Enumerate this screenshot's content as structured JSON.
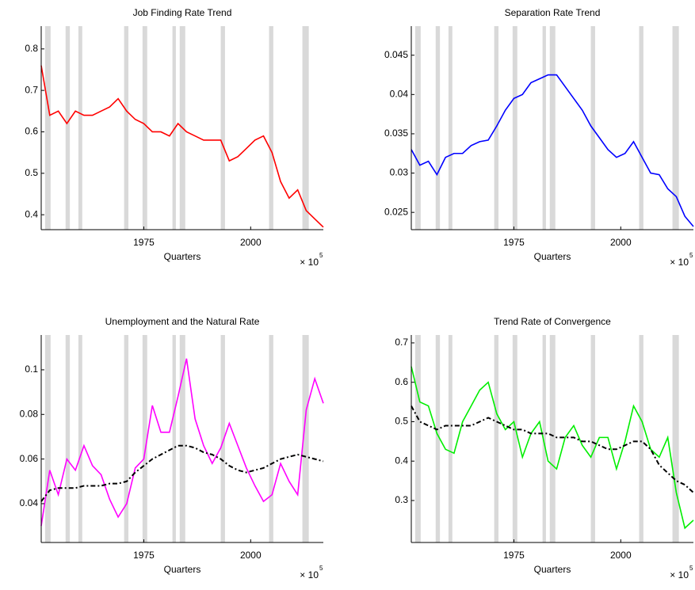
{
  "chart_data": [
    {
      "type": "line",
      "title": "Job Finding Rate Trend",
      "xlabel": "Quarters",
      "x_exponent": {
        "base": "× 10",
        "exponent": "5"
      },
      "x": [
        1951,
        1953,
        1955,
        1957,
        1959,
        1961,
        1963,
        1965,
        1967,
        1969,
        1971,
        1973,
        1975,
        1977,
        1979,
        1981,
        1983,
        1985,
        1987,
        1989,
        1991,
        1993,
        1995,
        1997,
        1999,
        2001,
        2003,
        2005,
        2007,
        2009,
        2011,
        2013,
        2015,
        2017
      ],
      "series": [
        {
          "color": "#ff0000",
          "dash": "solid",
          "values": [
            0.76,
            0.64,
            0.65,
            0.62,
            0.65,
            0.64,
            0.64,
            0.65,
            0.66,
            0.68,
            0.65,
            0.63,
            0.62,
            0.6,
            0.6,
            0.59,
            0.62,
            0.6,
            0.59,
            0.58,
            0.58,
            0.58,
            0.53,
            0.54,
            0.56,
            0.58,
            0.59,
            0.55,
            0.48,
            0.44,
            0.46,
            0.41,
            0.39,
            0.37
          ]
        }
      ],
      "xlim": [
        1951,
        2017
      ],
      "xticks": [
        1975,
        2000
      ],
      "ylim": [
        0.364,
        0.855
      ],
      "yticks": [
        0.4,
        0.5,
        0.6,
        0.7,
        0.8
      ],
      "shade_color": "#d9d9d9",
      "shaded_regions": [
        [
          1951.9,
          1953.2
        ],
        [
          1956.7,
          1957.7
        ],
        [
          1959.7,
          1960.6
        ],
        [
          1970.4,
          1971.4
        ],
        [
          1974.7,
          1975.8
        ],
        [
          1981.7,
          1982.5
        ],
        [
          1983.4,
          1984.7
        ],
        [
          1993.0,
          1994.0
        ],
        [
          2004.3,
          2005.3
        ],
        [
          2012.1,
          2013.6
        ]
      ]
    },
    {
      "type": "line",
      "title": "Separation Rate Trend",
      "xlabel": "Quarters",
      "x_exponent": {
        "base": "× 10",
        "exponent": "5"
      },
      "x": [
        1951,
        1953,
        1955,
        1957,
        1959,
        1961,
        1963,
        1965,
        1967,
        1969,
        1971,
        1973,
        1975,
        1977,
        1979,
        1981,
        1983,
        1985,
        1987,
        1989,
        1991,
        1993,
        1995,
        1997,
        1999,
        2001,
        2003,
        2005,
        2007,
        2009,
        2011,
        2013,
        2015,
        2017
      ],
      "series": [
        {
          "color": "#0000ff",
          "dash": "solid",
          "values": [
            0.033,
            0.031,
            0.0315,
            0.0298,
            0.032,
            0.0325,
            0.0325,
            0.0335,
            0.034,
            0.0342,
            0.036,
            0.038,
            0.0395,
            0.04,
            0.0415,
            0.042,
            0.0425,
            0.0425,
            0.041,
            0.0395,
            0.038,
            0.036,
            0.0345,
            0.033,
            0.032,
            0.0325,
            0.034,
            0.032,
            0.03,
            0.0298,
            0.028,
            0.027,
            0.0245,
            0.0232
          ]
        }
      ],
      "xlim": [
        1951,
        2017
      ],
      "xticks": [
        1975,
        2000
      ],
      "ylim": [
        0.0228,
        0.0487
      ],
      "yticks": [
        0.025,
        0.03,
        0.035,
        0.04,
        0.045
      ],
      "shade_color": "#d9d9d9",
      "shaded_regions": [
        [
          1951.9,
          1953.2
        ],
        [
          1956.7,
          1957.7
        ],
        [
          1959.7,
          1960.6
        ],
        [
          1970.4,
          1971.4
        ],
        [
          1974.7,
          1975.8
        ],
        [
          1981.7,
          1982.5
        ],
        [
          1983.4,
          1984.7
        ],
        [
          1993.0,
          1994.0
        ],
        [
          2004.3,
          2005.3
        ],
        [
          2012.1,
          2013.6
        ]
      ]
    },
    {
      "type": "line",
      "title": "Unemployment and the Natural Rate",
      "xlabel": "Quarters",
      "x_exponent": {
        "base": "× 10",
        "exponent": "5"
      },
      "x": [
        1951,
        1953,
        1955,
        1957,
        1959,
        1961,
        1963,
        1965,
        1967,
        1969,
        1971,
        1973,
        1975,
        1977,
        1979,
        1981,
        1983,
        1985,
        1987,
        1989,
        1991,
        1993,
        1995,
        1997,
        1999,
        2001,
        2003,
        2005,
        2007,
        2009,
        2011,
        2013,
        2015,
        2017
      ],
      "series": [
        {
          "color": "#ff00ff",
          "dash": "solid",
          "values": [
            0.03,
            0.055,
            0.044,
            0.06,
            0.055,
            0.066,
            0.057,
            0.053,
            0.042,
            0.034,
            0.04,
            0.056,
            0.06,
            0.084,
            0.072,
            0.072,
            0.088,
            0.105,
            0.078,
            0.066,
            0.058,
            0.065,
            0.076,
            0.066,
            0.056,
            0.048,
            0.041,
            0.044,
            0.058,
            0.05,
            0.044,
            0.082,
            0.096,
            0.085
          ]
        },
        {
          "color": "#000000",
          "dash": "dashdot",
          "values": [
            0.041,
            0.046,
            0.047,
            0.047,
            0.047,
            0.048,
            0.048,
            0.048,
            0.049,
            0.049,
            0.05,
            0.054,
            0.057,
            0.06,
            0.062,
            0.064,
            0.066,
            0.066,
            0.065,
            0.063,
            0.062,
            0.06,
            0.057,
            0.055,
            0.054,
            0.055,
            0.056,
            0.058,
            0.06,
            0.061,
            0.062,
            0.061,
            0.06,
            0.059
          ]
        }
      ],
      "xlim": [
        1951,
        2017
      ],
      "xticks": [
        1975,
        2000
      ],
      "ylim": [
        0.0226,
        0.1156
      ],
      "yticks": [
        0.04,
        0.06,
        0.08,
        0.1
      ],
      "shade_color": "#d9d9d9",
      "shaded_regions": [
        [
          1951.9,
          1953.2
        ],
        [
          1956.7,
          1957.7
        ],
        [
          1959.7,
          1960.6
        ],
        [
          1970.4,
          1971.4
        ],
        [
          1974.7,
          1975.8
        ],
        [
          1981.7,
          1982.5
        ],
        [
          1983.4,
          1984.7
        ],
        [
          1993.0,
          1994.0
        ],
        [
          2004.3,
          2005.3
        ],
        [
          2012.1,
          2013.6
        ]
      ]
    },
    {
      "type": "line",
      "title": "Trend Rate of Convergence",
      "xlabel": "Quarters",
      "x_exponent": {
        "base": "× 10",
        "exponent": "5"
      },
      "x": [
        1951,
        1953,
        1955,
        1957,
        1959,
        1961,
        1963,
        1965,
        1967,
        1969,
        1971,
        1973,
        1975,
        1977,
        1979,
        1981,
        1983,
        1985,
        1987,
        1989,
        1991,
        1993,
        1995,
        1997,
        1999,
        2001,
        2003,
        2005,
        2007,
        2009,
        2011,
        2013,
        2015,
        2017
      ],
      "series": [
        {
          "color": "#00ee00",
          "dash": "solid",
          "values": [
            0.64,
            0.55,
            0.54,
            0.47,
            0.43,
            0.42,
            0.5,
            0.54,
            0.58,
            0.6,
            0.52,
            0.48,
            0.5,
            0.41,
            0.47,
            0.5,
            0.4,
            0.38,
            0.46,
            0.49,
            0.44,
            0.41,
            0.46,
            0.46,
            0.38,
            0.45,
            0.54,
            0.5,
            0.43,
            0.41,
            0.46,
            0.32,
            0.23,
            0.25
          ]
        },
        {
          "color": "#000000",
          "dash": "dashdot",
          "values": [
            0.54,
            0.5,
            0.49,
            0.48,
            0.49,
            0.49,
            0.49,
            0.49,
            0.5,
            0.51,
            0.5,
            0.49,
            0.48,
            0.48,
            0.47,
            0.47,
            0.47,
            0.46,
            0.46,
            0.46,
            0.45,
            0.45,
            0.44,
            0.43,
            0.43,
            0.44,
            0.45,
            0.45,
            0.43,
            0.39,
            0.37,
            0.35,
            0.34,
            0.32
          ]
        }
      ],
      "xlim": [
        1951,
        2017
      ],
      "xticks": [
        1975,
        2000
      ],
      "ylim": [
        0.1935,
        0.72
      ],
      "yticks": [
        0.3,
        0.4,
        0.5,
        0.6,
        0.7
      ],
      "shade_color": "#d9d9d9",
      "shaded_regions": [
        [
          1951.9,
          1953.2
        ],
        [
          1956.7,
          1957.7
        ],
        [
          1959.7,
          1960.6
        ],
        [
          1970.4,
          1971.4
        ],
        [
          1974.7,
          1975.8
        ],
        [
          1981.7,
          1982.5
        ],
        [
          1983.4,
          1984.7
        ],
        [
          1993.0,
          1994.0
        ],
        [
          2004.3,
          2005.3
        ],
        [
          2012.1,
          2013.6
        ]
      ]
    }
  ]
}
